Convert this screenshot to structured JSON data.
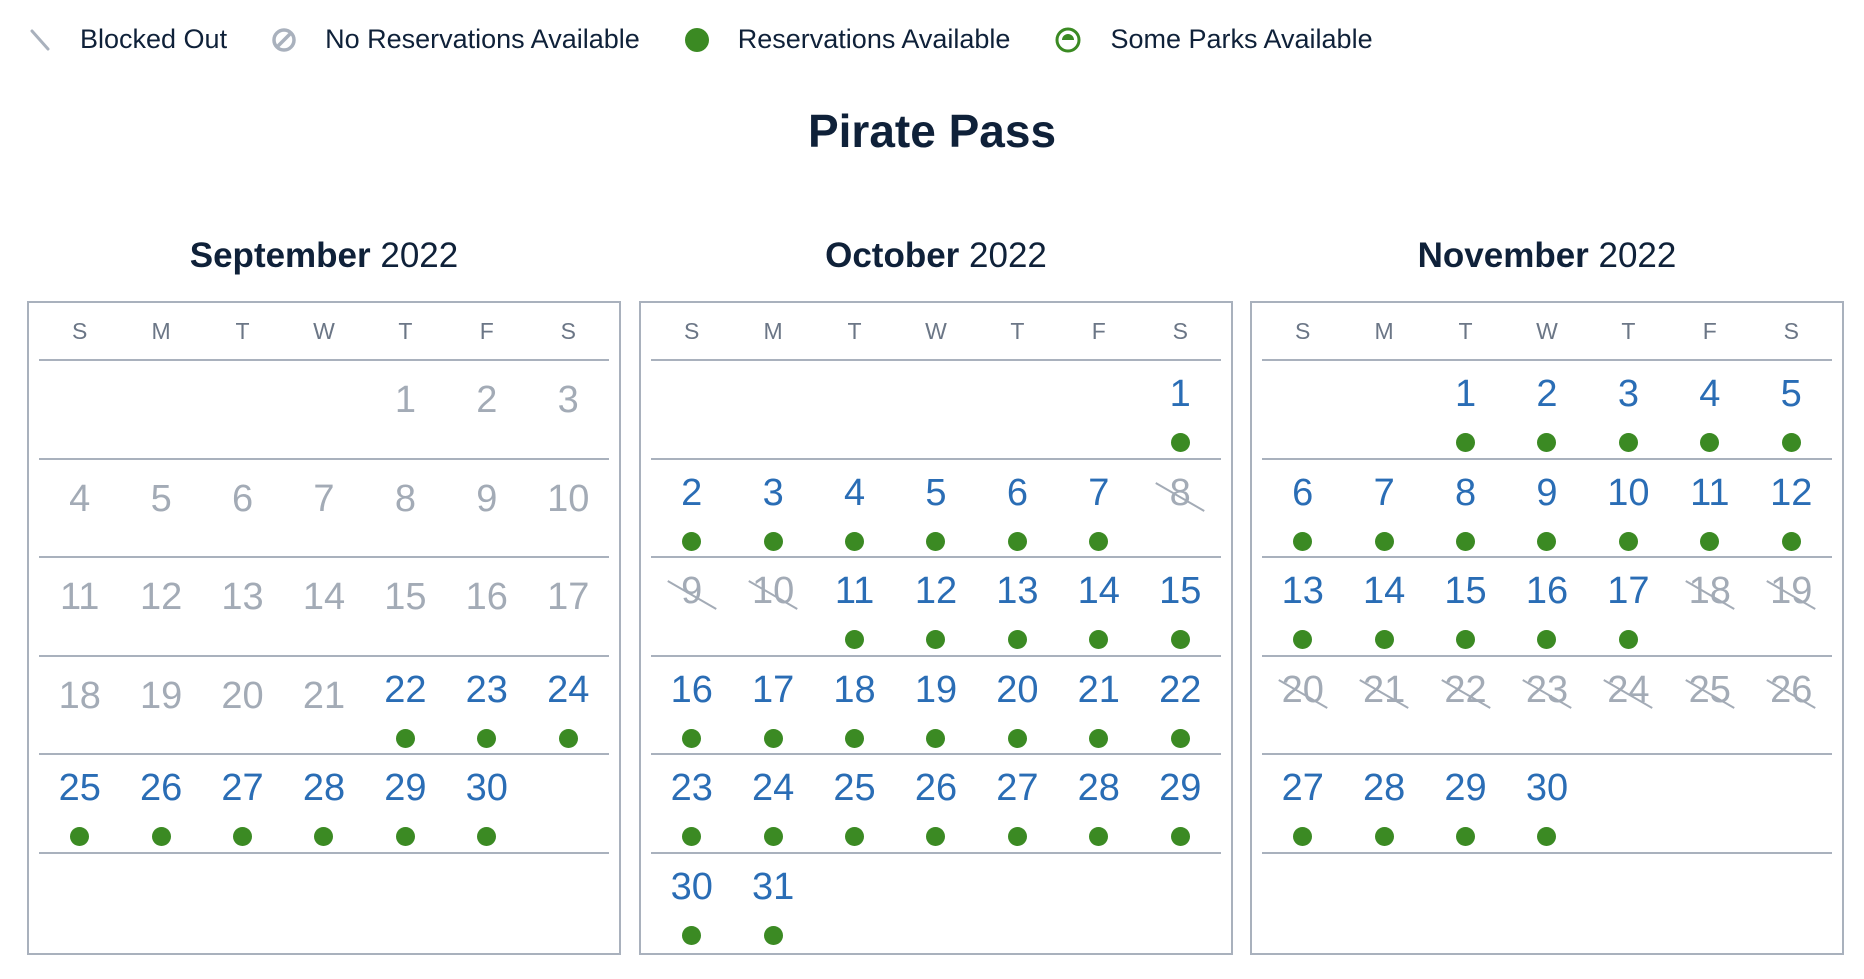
{
  "legend": [
    {
      "icon": "blocked-out-icon",
      "label": "Blocked Out"
    },
    {
      "icon": "no-reservations-icon",
      "label": "No Reservations Available"
    },
    {
      "icon": "reservations-available-icon",
      "label": "Reservations Available"
    },
    {
      "icon": "some-parks-icon",
      "label": "Some Parks Available"
    }
  ],
  "colors": {
    "available": "#3b8a23",
    "link": "#2a6db5",
    "muted": "#a3abb6",
    "text": "#0f2139"
  },
  "title": "Pirate Pass",
  "weekdays": [
    "S",
    "M",
    "T",
    "W",
    "T",
    "F",
    "S"
  ],
  "months": [
    {
      "name": "September",
      "year": "2022",
      "month_number": 9,
      "days": [
        "past",
        "past",
        "past",
        "past",
        "past",
        "past",
        "past",
        "past",
        "past",
        "past",
        "past",
        "past",
        "past",
        "past",
        "past",
        "past",
        "past",
        "past",
        "past",
        "past",
        "past",
        "available",
        "available",
        "available",
        "available",
        "available",
        "available",
        "available",
        "available",
        "available"
      ]
    },
    {
      "name": "October",
      "year": "2022",
      "month_number": 10,
      "days": [
        "available",
        "available",
        "available",
        "available",
        "available",
        "available",
        "available",
        "blocked",
        "blocked",
        "blocked",
        "available",
        "available",
        "available",
        "available",
        "available",
        "available",
        "available",
        "available",
        "available",
        "available",
        "available",
        "available",
        "available",
        "available",
        "available",
        "available",
        "available",
        "available",
        "available",
        "available",
        "available"
      ]
    },
    {
      "name": "November",
      "year": "2022",
      "month_number": 11,
      "days": [
        "available",
        "available",
        "available",
        "available",
        "available",
        "available",
        "available",
        "available",
        "available",
        "available",
        "available",
        "available",
        "available",
        "available",
        "available",
        "available",
        "available",
        "blocked",
        "blocked",
        "blocked",
        "blocked",
        "blocked",
        "blocked",
        "blocked",
        "blocked",
        "blocked",
        "available",
        "available",
        "available",
        "available"
      ]
    }
  ]
}
